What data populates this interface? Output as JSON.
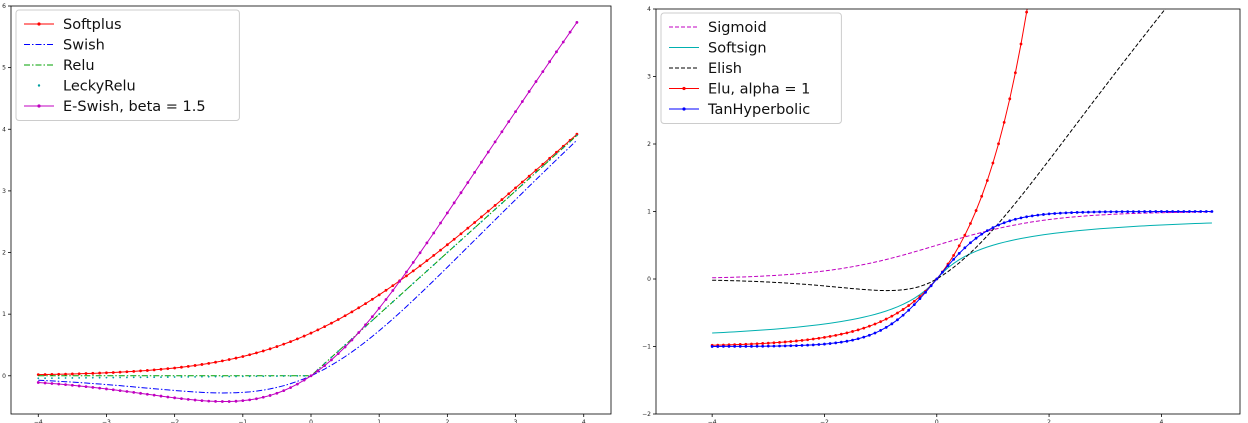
{
  "chart_data": [
    {
      "type": "line",
      "title": "",
      "xlabel": "",
      "ylabel": "",
      "xlim": [
        -4.4,
        4.4
      ],
      "ylim": [
        -0.62,
        6.0
      ],
      "xticks": [
        -4,
        -3,
        -2,
        -1,
        0,
        1,
        2,
        3,
        4
      ],
      "yticks": [
        0,
        1,
        2,
        3,
        4,
        5,
        6
      ],
      "grid": false,
      "legend_position": "top-left",
      "series": [
        {
          "name": "Softplus",
          "function": "softplus",
          "color": "#ff0000",
          "dash": "",
          "marker": "dot"
        },
        {
          "name": "Swish",
          "function": "swish",
          "color": "#0000ff",
          "dash": "6 2 1.5 2",
          "marker": "none"
        },
        {
          "name": "Relu",
          "function": "relu",
          "color": "#00a000",
          "dash": "6 2 1.5 2",
          "marker": "none"
        },
        {
          "name": "LeckyRelu",
          "function": "leaky_relu",
          "color": "#00a0a0",
          "dash": "",
          "marker": "point"
        },
        {
          "name": "E-Swish, beta = 1.5",
          "function": "eswish_1.5",
          "color": "#c000c0",
          "dash": "",
          "marker": "dot"
        }
      ],
      "x_range": [
        -4.0,
        3.9
      ],
      "x_step": 0.1
    },
    {
      "type": "line",
      "title": "",
      "xlabel": "",
      "ylabel": "",
      "xlim": [
        -5.0,
        5.4
      ],
      "ylim": [
        -2.0,
        4.0
      ],
      "xticks": [
        -4,
        -2,
        0,
        2,
        4
      ],
      "yticks": [
        -2,
        -1,
        0,
        1,
        2,
        3,
        4
      ],
      "grid": false,
      "legend_position": "top-left",
      "series": [
        {
          "name": "Sigmoid",
          "function": "sigmoid",
          "color": "#c000c0",
          "dash": "4 2",
          "marker": "none"
        },
        {
          "name": "Softsign",
          "function": "softsign",
          "color": "#00b0b0",
          "dash": "",
          "marker": "none"
        },
        {
          "name": "Elish",
          "function": "elish",
          "color": "#000000",
          "dash": "4 2",
          "marker": "none"
        },
        {
          "name": "Elu, alpha = 1",
          "function": "elu_exp",
          "color": "#ff0000",
          "dash": "",
          "marker": "dot"
        },
        {
          "name": "TanHyperbolic",
          "function": "tanh",
          "color": "#0000ff",
          "dash": "",
          "marker": "dot"
        }
      ],
      "x_range": [
        -4.0,
        4.9
      ],
      "x_step": 0.1
    }
  ]
}
